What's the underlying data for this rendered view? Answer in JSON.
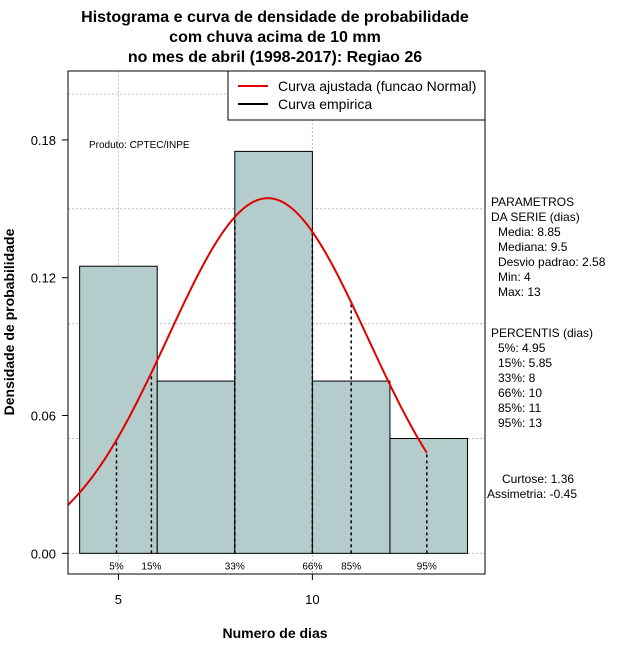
{
  "chart_data": {
    "type": "bar",
    "title_lines": [
      "Histograma e curva de densidade de probabilidade",
      "com chuva acima de 10 mm",
      "no mes de abril (1998-2017): Regiao 26"
    ],
    "xlabel": "Numero de dias",
    "ylabel": "Densidade de probabilidade",
    "xlim": [
      3.7,
      14.45
    ],
    "ylim": [
      -0.009,
      0.21
    ],
    "x_ticks": [
      5,
      10
    ],
    "y_ticks": [
      0.0,
      0.06,
      0.12,
      0.18
    ],
    "x_tick_labels": [
      "5",
      "10"
    ],
    "y_tick_labels": [
      "0.00",
      "0.06",
      "0.12",
      "0.18"
    ],
    "grid": true,
    "grid_x": [
      5,
      10
    ],
    "grid_y": [
      0.0,
      0.05,
      0.1,
      0.15,
      0.2
    ],
    "bins": [
      {
        "x0": 4,
        "x1": 6,
        "density": 0.125
      },
      {
        "x0": 6,
        "x1": 8,
        "density": 0.075
      },
      {
        "x0": 8,
        "x1": 10,
        "density": 0.175
      },
      {
        "x0": 10,
        "x1": 12,
        "density": 0.075
      },
      {
        "x0": 12,
        "x1": 14,
        "density": 0.05
      }
    ],
    "bar_color": "#b5cccc",
    "normal_curve": {
      "name": "Curva ajustada (funcao Normal)",
      "mean": 8.85,
      "sd": 2.58,
      "x_from": 3.7,
      "x_to": 12.95,
      "color": "#e00000"
    },
    "empirical_curve": {
      "name": "Curva empirica",
      "color": "#000000"
    },
    "legend": {
      "position": "top-right",
      "entries": [
        {
          "label": "Curva ajustada (funcao Normal)",
          "color": "#e00000"
        },
        {
          "label": "Curva empirica",
          "color": "#000000"
        }
      ]
    },
    "percentile_lines": [
      {
        "label": "5%",
        "x": 4.95
      },
      {
        "label": "15%",
        "x": 5.85
      },
      {
        "label": "33%",
        "x": 8
      },
      {
        "label": "66%",
        "x": 10
      },
      {
        "label": "85%",
        "x": 11
      },
      {
        "label": "95%",
        "x": 12.95
      }
    ],
    "annotation": "Produto: CPTEC/INPE",
    "parametros": {
      "header": [
        "PARAMETROS",
        "DA SERIE (dias)"
      ],
      "lines": [
        "Media: 8.85",
        "Mediana: 9.5",
        "Desvio padrao: 2.58",
        "Min: 4",
        "Max: 13"
      ]
    },
    "percentis": {
      "header": "PERCENTIS (dias)",
      "lines": [
        "5%: 4.95",
        "15%: 5.85",
        "33%: 8",
        "66%: 10",
        "85%: 11",
        "95%: 13"
      ]
    },
    "shape": {
      "lines": [
        "Curtose: 1.36",
        "Assimetria: -0.45"
      ]
    }
  }
}
